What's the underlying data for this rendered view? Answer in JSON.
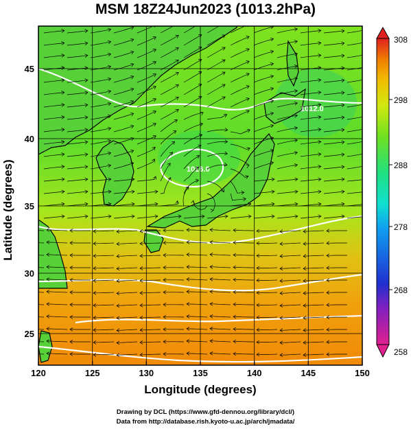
{
  "title": "MSM 18Z24Jun2023 (1013.2hPa)",
  "xlabel": "Longitude (degrees)",
  "ylabel": "Latitude  (degrees)",
  "credits": [
    "Drawing by DCL (https://www.gfd-dennou.org/library/dcl/)",
    "Data from http://database.rish.kyoto-u.ac.jp/arch/jmadata/"
  ],
  "chart_data": {
    "type": "heatmap",
    "title": "MSM 18Z24Jun2023 (1013.2hPa)",
    "xlabel": "Longitude (degrees)",
    "ylabel": "Latitude  (degrees)",
    "xlim": [
      120,
      150
    ],
    "ylim": [
      22.4,
      47.6
    ],
    "x_ticks": [
      120,
      125,
      130,
      135,
      140,
      145,
      150
    ],
    "y_ticks": [
      25,
      30,
      35,
      40,
      45
    ],
    "colorbar": {
      "min": 258,
      "max": 308,
      "labels": [
        308,
        298,
        288,
        278,
        268,
        258
      ],
      "colors": [
        "#e0208f",
        "#2020c0",
        "#10a0f0",
        "#10e0d0",
        "#20e080",
        "#70e020",
        "#d0e810",
        "#f0c000",
        "#f08000",
        "#e02020"
      ]
    },
    "contour_labels": [
      "1012.0",
      "1016.0"
    ],
    "grid": true
  }
}
